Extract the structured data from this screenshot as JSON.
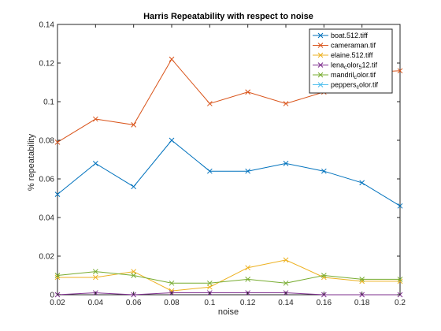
{
  "chart_data": {
    "type": "line",
    "title": "Harris Repeatability with respect to noise",
    "xlabel": "noise",
    "ylabel": "% repeatability",
    "xlim": [
      0.02,
      0.2
    ],
    "ylim": [
      0,
      0.14
    ],
    "x": [
      0.02,
      0.04,
      0.06,
      0.08,
      0.1,
      0.12,
      0.14,
      0.16,
      0.18,
      0.2
    ],
    "xticks": [
      "0.02",
      "0.04",
      "0.06",
      "0.08",
      "0.1",
      "0.12",
      "0.14",
      "0.16",
      "0.18",
      "0.2"
    ],
    "yticks": [
      "0",
      "0.02",
      "0.04",
      "0.06",
      "0.08",
      "0.1",
      "0.12",
      "0.14"
    ],
    "grid": false,
    "legend_position": "top-right",
    "series": [
      {
        "name": "boat.512.tiff",
        "color": "#0072BD",
        "values": [
          0.052,
          0.068,
          0.056,
          0.08,
          0.064,
          0.064,
          0.068,
          0.064,
          0.058,
          0.046
        ]
      },
      {
        "name": "cameraman.tif",
        "color": "#D95319",
        "values": [
          0.079,
          0.091,
          0.088,
          0.122,
          0.099,
          0.105,
          0.099,
          0.105,
          0.115,
          0.116
        ]
      },
      {
        "name": "elaine.512.tiff",
        "color": "#EDB120",
        "values": [
          0.009,
          0.009,
          0.012,
          0.002,
          0.004,
          0.014,
          0.018,
          0.009,
          0.007,
          0.007
        ]
      },
      {
        "name": "lena_color_512.tif",
        "legend_html": "lena<tspan dy=\"2\" font-size=\"7\">c</tspan><tspan dy=\"-2\">olor</tspan><tspan dy=\"2\" font-size=\"7\">5</tspan><tspan dy=\"-2\">12.tif</tspan>",
        "color": "#7E2F8E",
        "values": [
          0.0,
          0.001,
          0.0,
          0.001,
          0.001,
          0.001,
          0.001,
          0.0,
          0.0,
          0.0
        ]
      },
      {
        "name": "mandril_color.tif",
        "legend_html": "mandril<tspan dy=\"2\" font-size=\"7\">c</tspan><tspan dy=\"-2\">olor.tif</tspan>",
        "color": "#77AC30",
        "values": [
          0.01,
          0.012,
          0.01,
          0.006,
          0.006,
          0.008,
          0.006,
          0.01,
          0.008,
          0.008
        ]
      },
      {
        "name": "peppers_color.tif",
        "legend_html": "peppers<tspan dy=\"2\" font-size=\"7\">c</tspan><tspan dy=\"-2\">olor.tif</tspan>",
        "color": "#4DBEEE",
        "values": [
          null,
          null,
          null,
          null,
          null,
          null,
          null,
          null,
          null,
          null
        ]
      }
    ]
  }
}
